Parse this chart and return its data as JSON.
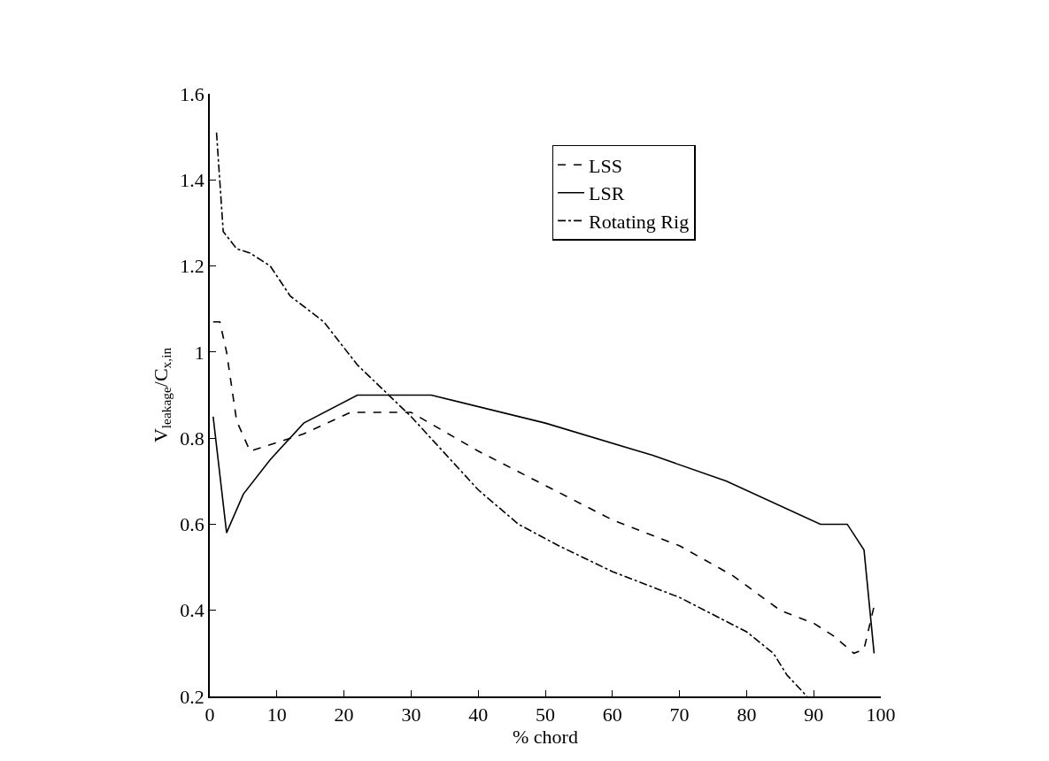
{
  "chart_data": {
    "type": "line",
    "xlabel": "% chord",
    "ylabel": "V$_{leakage}$/C$_{x,in}$",
    "xlim": [
      0,
      100
    ],
    "xticks": [
      0,
      10,
      20,
      30,
      40,
      50,
      60,
      70,
      80,
      90,
      100
    ],
    "ylim": [
      0.2,
      1.6
    ],
    "yticks": [
      0.2,
      0.4,
      0.6,
      0.8,
      1,
      1.2,
      1.4,
      1.6
    ],
    "legend": "top right",
    "marker": "none",
    "series": [
      {
        "name": "LSS",
        "color": "#000000",
        "line_style": "dashed",
        "x": [
          0.5,
          1.5,
          2.5,
          4,
          6,
          10,
          14,
          21,
          30,
          40,
          50,
          60,
          70,
          78,
          85,
          90,
          93,
          96,
          97.5,
          99
        ],
        "values": [
          1.07,
          1.07,
          1.0,
          0.84,
          0.77,
          0.79,
          0.81,
          0.86,
          0.86,
          0.77,
          0.69,
          0.61,
          0.55,
          0.48,
          0.4,
          0.37,
          0.34,
          0.3,
          0.31,
          0.41
        ]
      },
      {
        "name": "LSR",
        "color": "#000000",
        "line_style": "solid",
        "x": [
          0.5,
          2.5,
          5,
          9,
          14,
          22,
          33,
          50,
          66,
          77,
          91,
          95,
          97.5,
          99
        ],
        "values": [
          0.85,
          0.58,
          0.67,
          0.75,
          0.835,
          0.9,
          0.9,
          0.835,
          0.76,
          0.7,
          0.6,
          0.6,
          0.54,
          0.3
        ]
      },
      {
        "name": "Rotating Rig",
        "color": "#000000",
        "line_style": "dashdot",
        "x": [
          1,
          2,
          4,
          6,
          9,
          12,
          17,
          22,
          30,
          40,
          46,
          52,
          60,
          70,
          80,
          84,
          86,
          89
        ],
        "values": [
          1.51,
          1.28,
          1.24,
          1.23,
          1.2,
          1.13,
          1.07,
          0.97,
          0.85,
          0.68,
          0.6,
          0.55,
          0.49,
          0.43,
          0.35,
          0.3,
          0.25,
          0.2
        ]
      }
    ]
  }
}
